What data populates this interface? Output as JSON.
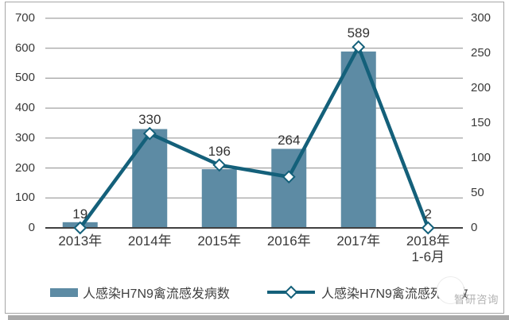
{
  "chart_data": {
    "type": "bar+line combo",
    "categories": [
      {
        "label": "2013年",
        "sub": ""
      },
      {
        "label": "2014年",
        "sub": ""
      },
      {
        "label": "2015年",
        "sub": ""
      },
      {
        "label": "2016年",
        "sub": ""
      },
      {
        "label": "2017年",
        "sub": ""
      },
      {
        "label": "2018年",
        "sub": "1-6月"
      }
    ],
    "series": [
      {
        "name": "人感染H7N9禽流感发病数",
        "type": "bar",
        "axis": "left",
        "values": [
          19,
          330,
          196,
          264,
          589,
          2
        ],
        "data_labels": [
          "19",
          "330",
          "196",
          "264",
          "589",
          "2"
        ],
        "color": "#5d8ba4"
      },
      {
        "name": "人感染H7N9禽流感死亡数",
        "type": "line",
        "axis": "right",
        "values": [
          0,
          135,
          90,
          73,
          259,
          0
        ],
        "estimated": true,
        "color": "#14607a",
        "marker": "white-diamond"
      }
    ],
    "left_axis": {
      "min": 0,
      "max": 700,
      "step": 100,
      "ticks": [
        "0",
        "100",
        "200",
        "300",
        "400",
        "500",
        "600",
        "700"
      ]
    },
    "right_axis": {
      "min": 0,
      "max": 300,
      "step": 50,
      "ticks": [
        "0",
        "50",
        "100",
        "150",
        "200",
        "250",
        "300"
      ]
    },
    "grid": true,
    "legend_position": "bottom"
  },
  "colors": {
    "bar": "#5d8ba4",
    "line": "#14607a",
    "gridline": "#8c8c8c",
    "axis_line": "#404040",
    "frame_border": "#a6a6a6"
  },
  "watermark": {
    "text": "智研咨询",
    "logo": "circle-logo"
  }
}
